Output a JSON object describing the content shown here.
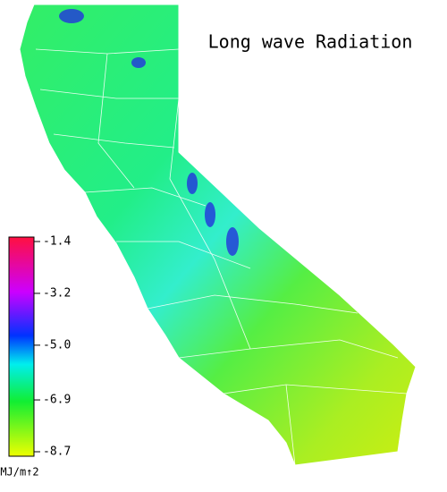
{
  "title": "Long wave Radiation",
  "colorbar": {
    "unit": "MJ/m↑2",
    "range": [
      -8.7,
      -1.4
    ],
    "ticks": [
      {
        "value": -1.4,
        "label": "-1.4"
      },
      {
        "value": -3.2,
        "label": "-3.2"
      },
      {
        "value": -5,
        "label": "-5.0"
      },
      {
        "value": -6.9,
        "label": "-6.9"
      },
      {
        "value": -8.7,
        "label": "-8.7"
      }
    ]
  }
}
